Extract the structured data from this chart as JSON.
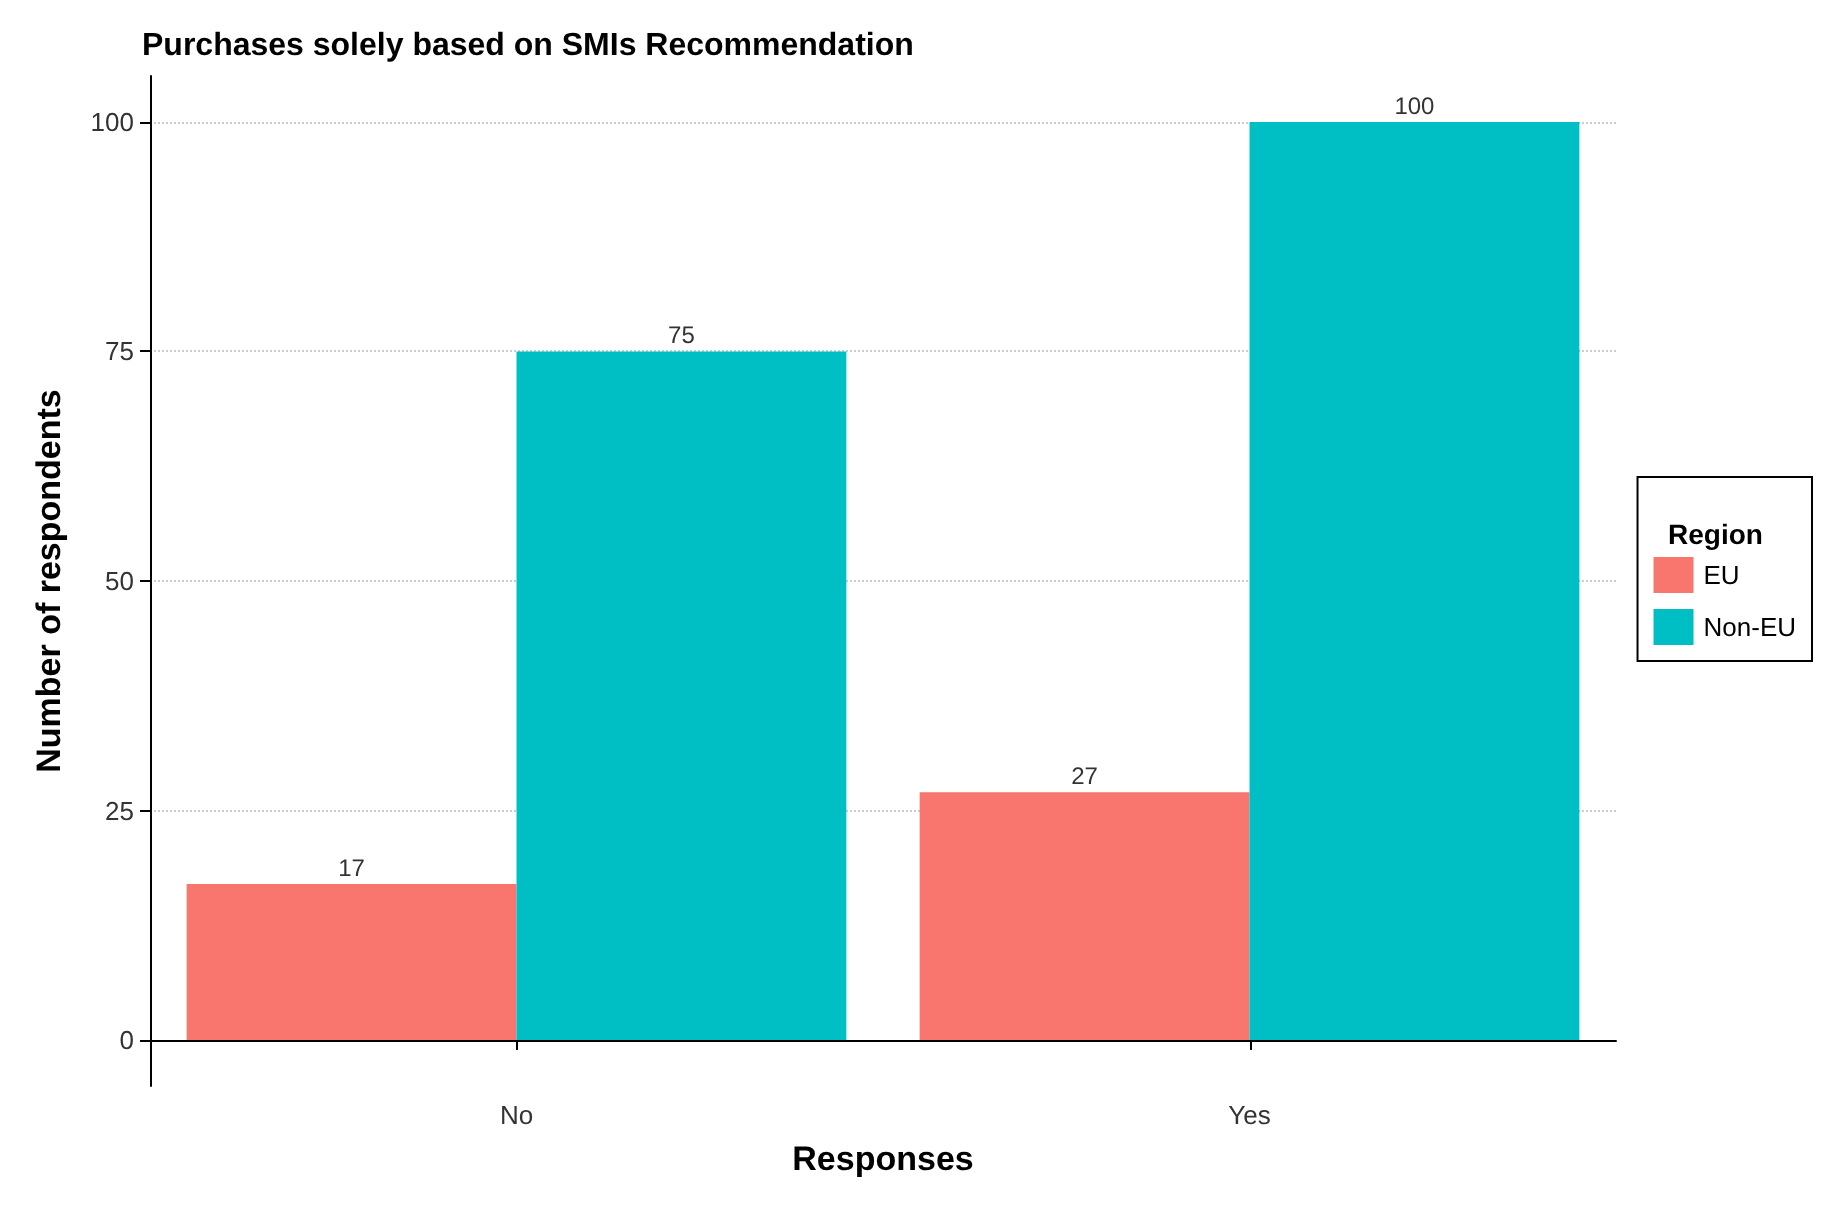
{
  "chart_data": {
    "type": "bar",
    "title": "Purchases solely based on SMIs Recommendation",
    "xlabel": "Responses",
    "ylabel": "Number of respondents",
    "legend_title": "Region",
    "categories": [
      "No",
      "Yes"
    ],
    "series": [
      {
        "name": "EU",
        "color": "#f8766d",
        "values": [
          17,
          27
        ]
      },
      {
        "name": "Non-EU",
        "color": "#00bfc4",
        "values": [
          75,
          100
        ]
      }
    ],
    "ylim": [
      -5,
      105
    ],
    "yticks": [
      0,
      25,
      50,
      75,
      100
    ],
    "grid": "y",
    "legend": "right",
    "data_labels": true
  }
}
